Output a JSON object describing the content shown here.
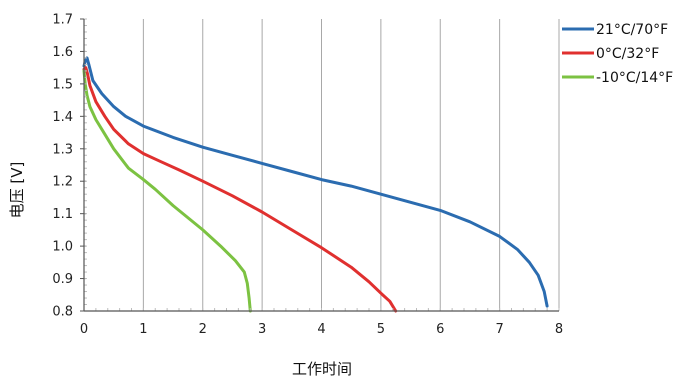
{
  "chart_data": {
    "type": "line",
    "title": "",
    "xlabel": "工作时间",
    "ylabel": "电压 [V]",
    "xlim": [
      0,
      8
    ],
    "ylim": [
      0.8,
      1.7
    ],
    "x_ticks": [
      "0",
      "1",
      "2",
      "3",
      "4",
      "5",
      "6",
      "7",
      "8"
    ],
    "y_ticks": [
      "0.8",
      "0.9",
      "1.0",
      "1.1",
      "1.2",
      "1.3",
      "1.4",
      "1.5",
      "1.6",
      "1.7"
    ],
    "grid": "vertical",
    "legend_position": "right",
    "series": [
      {
        "name": "21°C/70°F",
        "color": "#2b6cb0",
        "x": [
          0.0,
          0.02,
          0.05,
          0.08,
          0.15,
          0.3,
          0.5,
          0.7,
          1.0,
          1.5,
          2.0,
          2.5,
          3.0,
          3.5,
          4.0,
          4.5,
          5.0,
          5.5,
          6.0,
          6.5,
          7.0,
          7.3,
          7.5,
          7.65,
          7.75,
          7.8
        ],
        "y": [
          1.555,
          1.57,
          1.58,
          1.56,
          1.51,
          1.47,
          1.43,
          1.4,
          1.37,
          1.335,
          1.305,
          1.28,
          1.255,
          1.23,
          1.205,
          1.185,
          1.16,
          1.135,
          1.11,
          1.075,
          1.03,
          0.99,
          0.95,
          0.91,
          0.86,
          0.815
        ]
      },
      {
        "name": "0°C/32°F",
        "color": "#e0302f",
        "x": [
          0.0,
          0.03,
          0.06,
          0.1,
          0.2,
          0.35,
          0.5,
          0.75,
          1.0,
          1.3,
          1.6,
          2.0,
          2.5,
          3.0,
          3.5,
          4.0,
          4.5,
          4.8,
          5.0,
          5.15,
          5.25
        ],
        "y": [
          1.545,
          1.55,
          1.53,
          1.495,
          1.445,
          1.4,
          1.36,
          1.315,
          1.285,
          1.26,
          1.235,
          1.2,
          1.155,
          1.105,
          1.05,
          0.995,
          0.935,
          0.89,
          0.855,
          0.83,
          0.8
        ]
      },
      {
        "name": "-10°C/14°F",
        "color": "#7cc242",
        "x": [
          0.0,
          0.02,
          0.05,
          0.1,
          0.2,
          0.35,
          0.5,
          0.75,
          1.0,
          1.2,
          1.5,
          2.0,
          2.3,
          2.55,
          2.7,
          2.75,
          2.78,
          2.8
        ],
        "y": [
          1.54,
          1.5,
          1.465,
          1.43,
          1.39,
          1.345,
          1.3,
          1.24,
          1.205,
          1.175,
          1.125,
          1.05,
          1.0,
          0.955,
          0.92,
          0.885,
          0.84,
          0.8
        ]
      }
    ]
  }
}
